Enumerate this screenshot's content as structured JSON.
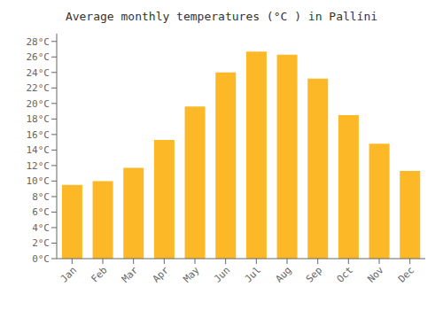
{
  "chart_data": {
    "type": "bar",
    "title": "Average monthly temperatures (°C ) in Pallíni",
    "categories": [
      "Jan",
      "Feb",
      "Mar",
      "Apr",
      "May",
      "Jun",
      "Jul",
      "Aug",
      "Sep",
      "Oct",
      "Nov",
      "Dec"
    ],
    "values": [
      9.5,
      10.0,
      11.7,
      15.3,
      19.6,
      24.0,
      26.7,
      26.3,
      23.2,
      18.5,
      14.8,
      11.3
    ],
    "color": "#FDB827",
    "ylim": [
      0,
      29
    ],
    "yticks": [
      {
        "value": 0,
        "label": "0°C"
      },
      {
        "value": 2,
        "label": "2°C"
      },
      {
        "value": 4,
        "label": "4°C"
      },
      {
        "value": 6,
        "label": "6°C"
      },
      {
        "value": 8,
        "label": "8°C"
      },
      {
        "value": 10,
        "label": "10°C"
      },
      {
        "value": 12,
        "label": "12°C"
      },
      {
        "value": 14,
        "label": "14°C"
      },
      {
        "value": 16,
        "label": "16°C"
      },
      {
        "value": 18,
        "label": "18°C"
      },
      {
        "value": 20,
        "label": "20°C"
      },
      {
        "value": 22,
        "label": "22°C"
      },
      {
        "value": 24,
        "label": "24°C"
      },
      {
        "value": 26,
        "label": "26°C"
      },
      {
        "value": 28,
        "label": "28°C"
      }
    ],
    "grid": false
  }
}
